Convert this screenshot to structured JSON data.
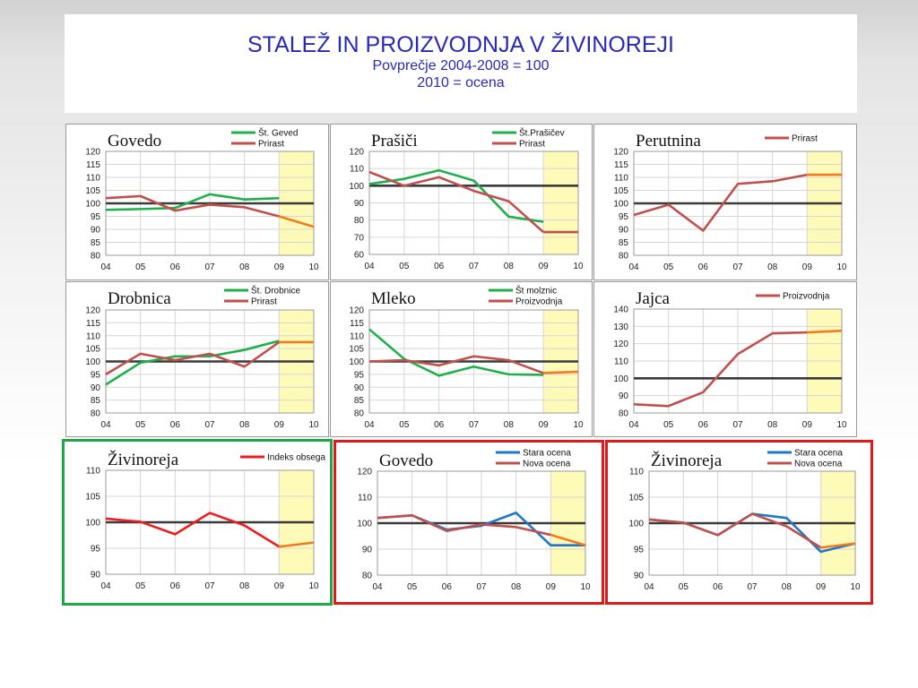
{
  "slide": {
    "title": "STALEŽ IN PROIZVODNJA V ŽIVINOREJI",
    "subtitle_1": "Povprečje 2004-2008 = 100",
    "subtitle_2": "2010 = ocena"
  },
  "colors": {
    "title": "#2929b8",
    "green": "#1fb04d",
    "brown_red": "#c0504d",
    "red": "#ee1c1c",
    "orange": "#f47a20",
    "blue": "#1f78c8",
    "forecast_band": "#fefbb8",
    "baseline": "#3a3a3a",
    "frame_green": "#1fa84a",
    "frame_red": "#e01a1a"
  },
  "chart_data": [
    {
      "type": "line",
      "title": "Govedo",
      "x": [
        "04",
        "05",
        "06",
        "07",
        "08",
        "09",
        "10"
      ],
      "ylim": [
        80,
        120
      ],
      "yticks": [
        80,
        85,
        90,
        95,
        100,
        105,
        110,
        115,
        120
      ],
      "shaded_x": [
        "09",
        "10"
      ],
      "baseline": 100,
      "series": [
        {
          "name": "Št. Geved",
          "color": "green",
          "values": [
            97.5,
            97.8,
            98.2,
            103.5,
            101.5,
            102,
            null
          ]
        },
        {
          "name": "Prirast",
          "color": "brown_red",
          "values": [
            102,
            102.8,
            97.2,
            99.5,
            98.5,
            95,
            91
          ],
          "tail_color": "orange"
        }
      ]
    },
    {
      "type": "line",
      "title": "Prašiči",
      "x": [
        "04",
        "05",
        "06",
        "07",
        "08",
        "09",
        "10"
      ],
      "ylim": [
        60,
        120
      ],
      "yticks": [
        60,
        70,
        80,
        90,
        100,
        110,
        120
      ],
      "shaded_x": [
        "09",
        "10"
      ],
      "baseline": 100,
      "series": [
        {
          "name": "Št.Prašičev",
          "color": "green",
          "values": [
            101,
            104,
            109,
            103,
            82,
            79,
            null
          ]
        },
        {
          "name": "Prirast",
          "color": "brown_red",
          "values": [
            108,
            100,
            105,
            97,
            91,
            73,
            73
          ],
          "tail_color": "brown_red"
        }
      ]
    },
    {
      "type": "line",
      "title": "Perutnina",
      "x": [
        "04",
        "05",
        "06",
        "07",
        "08",
        "09",
        "10"
      ],
      "ylim": [
        80,
        120
      ],
      "yticks": [
        80,
        85,
        90,
        95,
        100,
        105,
        110,
        115,
        120
      ],
      "shaded_x": [
        "09",
        "10"
      ],
      "baseline": 100,
      "series": [
        {
          "name": "Prirast",
          "color": "brown_red",
          "values": [
            95.5,
            99.5,
            89.5,
            107.5,
            108.5,
            111,
            111
          ],
          "tail_color": "orange"
        }
      ]
    },
    {
      "type": "line",
      "title": "Drobnica",
      "x": [
        "04",
        "05",
        "06",
        "07",
        "08",
        "09",
        "10"
      ],
      "ylim": [
        80,
        120
      ],
      "yticks": [
        80,
        85,
        90,
        95,
        100,
        105,
        110,
        115,
        120
      ],
      "shaded_x": [
        "09",
        "10"
      ],
      "baseline": 100,
      "series": [
        {
          "name": "Št. Drobnice",
          "color": "green",
          "values": [
            91,
            99.5,
            102,
            102,
            104.5,
            108,
            null
          ]
        },
        {
          "name": "Prirast",
          "color": "brown_red",
          "values": [
            95,
            103,
            100.5,
            103,
            98,
            107.5,
            107.5
          ],
          "tail_color": "orange"
        }
      ]
    },
    {
      "type": "line",
      "title": "Mleko",
      "x": [
        "04",
        "05",
        "06",
        "07",
        "08",
        "09",
        "10"
      ],
      "ylim": [
        80,
        120
      ],
      "yticks": [
        80,
        85,
        90,
        95,
        100,
        105,
        110,
        115,
        120
      ],
      "shaded_x": [
        "09",
        "10"
      ],
      "baseline": 100,
      "series": [
        {
          "name": "Št molznic",
          "color": "green",
          "values": [
            112.5,
            101,
            94.5,
            98,
            95,
            94.8,
            null
          ]
        },
        {
          "name": "Proizvodnja",
          "color": "brown_red",
          "values": [
            100,
            100.5,
            98.5,
            102,
            100.5,
            95.5,
            96
          ],
          "tail_color": "orange"
        }
      ]
    },
    {
      "type": "line",
      "title": "Jajca",
      "x": [
        "04",
        "05",
        "06",
        "07",
        "08",
        "09",
        "10"
      ],
      "ylim": [
        80,
        140
      ],
      "yticks": [
        80,
        90,
        100,
        110,
        120,
        130,
        140
      ],
      "shaded_x": [
        "09",
        "10"
      ],
      "baseline": 100,
      "series": [
        {
          "name": "Proizvodnja",
          "color": "brown_red",
          "values": [
            85,
            84,
            92,
            114,
            126,
            126.5,
            127.5
          ],
          "tail_color": "orange"
        }
      ]
    },
    {
      "type": "line",
      "title": "Živinoreja",
      "x": [
        "04",
        "05",
        "06",
        "07",
        "08",
        "09",
        "10"
      ],
      "ylim": [
        90,
        110
      ],
      "yticks": [
        90,
        95,
        100,
        105,
        110
      ],
      "shaded_x": [
        "09",
        "10"
      ],
      "baseline": 100,
      "series": [
        {
          "name": "Indeks obsega",
          "color": "red",
          "values": [
            100.7,
            100.1,
            97.7,
            101.8,
            99.4,
            95.3,
            96.1
          ],
          "tail_color": "orange"
        }
      ]
    },
    {
      "type": "line",
      "title": "Govedo",
      "x": [
        "04",
        "05",
        "06",
        "07",
        "08",
        "09",
        "10"
      ],
      "ylim": [
        80,
        120
      ],
      "yticks": [
        80,
        90,
        100,
        110,
        120
      ],
      "shaded_x": [
        "09",
        "10"
      ],
      "baseline": 100,
      "series": [
        {
          "name": "Stara ocena",
          "color": "blue",
          "values": [
            102,
            103,
            97.5,
            99,
            104,
            91.5,
            91.5
          ]
        },
        {
          "name": "Nova ocena",
          "color": "brown_red",
          "values": [
            102,
            103,
            97,
            99.5,
            98.5,
            95.5,
            91.5
          ],
          "tail_color": "orange"
        }
      ]
    },
    {
      "type": "line",
      "title": "Živinoreja",
      "x": [
        "04",
        "05",
        "06",
        "07",
        "08",
        "09",
        "10"
      ],
      "ylim": [
        90,
        110
      ],
      "yticks": [
        90,
        95,
        100,
        105,
        110
      ],
      "shaded_x": [
        "09",
        "10"
      ],
      "baseline": 100,
      "series": [
        {
          "name": "Stara ocena",
          "color": "blue",
          "values": [
            100.7,
            100.1,
            97.7,
            101.8,
            101,
            94.5,
            96.1
          ]
        },
        {
          "name": "Nova ocena",
          "color": "brown_red",
          "values": [
            100.7,
            100.1,
            97.7,
            101.8,
            99.4,
            95.3,
            96.1
          ],
          "tail_color": "orange"
        }
      ]
    }
  ]
}
